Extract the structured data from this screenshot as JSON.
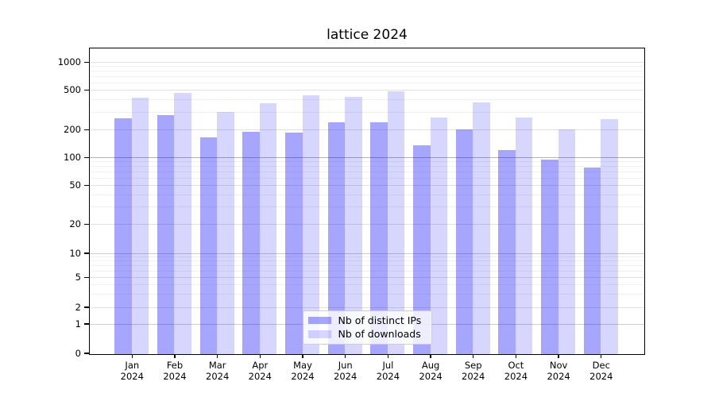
{
  "chart_data": {
    "type": "bar",
    "title": "lattice 2024",
    "categories": [
      "Jan",
      "Feb",
      "Mar",
      "Apr",
      "May",
      "Jun",
      "Jul",
      "Aug",
      "Sep",
      "Oct",
      "Nov",
      "Dec"
    ],
    "year_label": "2024",
    "series": [
      {
        "name": "Nb of distinct IPs",
        "color": "rgba(0,0,255,0.35)",
        "color_hex_on_white": "#a6a6ff",
        "values": [
          264,
          283,
          167,
          191,
          188,
          240,
          240,
          137,
          205,
          121,
          95,
          78
        ]
      },
      {
        "name": "Nb of downloads",
        "color": "rgba(0,0,255,0.16)",
        "color_hex_on_white": "#d6d6ff",
        "values": [
          426,
          474,
          303,
          371,
          449,
          434,
          492,
          268,
          376,
          268,
          203,
          258
        ]
      }
    ],
    "yscale": "symlog",
    "yticks": [
      0,
      1,
      2,
      5,
      10,
      20,
      50,
      100,
      200,
      500,
      1000
    ],
    "ylim": [
      0,
      1400
    ],
    "xlabel": "",
    "ylabel": "",
    "grid": true,
    "legend_position": "lower center"
  }
}
